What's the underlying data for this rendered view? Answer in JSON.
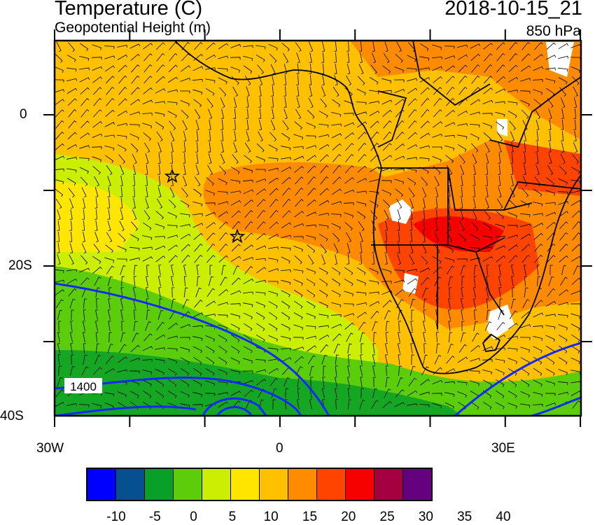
{
  "header": {
    "title": "Temperature (C)",
    "subtitle": "Geopotential Height (m)",
    "valid_time": "2018-10-15_21",
    "level": "850 hPa"
  },
  "axes": {
    "lat_labels": [
      "0",
      "20S",
      "40S"
    ],
    "lon_labels": [
      "30W",
      "0",
      "30E"
    ]
  },
  "contour_label": "1400",
  "colorbar": {
    "labels": [
      "-10",
      "-5",
      "0",
      "5",
      "10",
      "15",
      "20",
      "25",
      "30",
      "35",
      "40"
    ],
    "colors": [
      "#0000ff",
      "#06508f",
      "#08a028",
      "#5ccd0a",
      "#ccee00",
      "#ffe600",
      "#ffc000",
      "#ff8c00",
      "#ff4400",
      "#f70000",
      "#a50040",
      "#64007d"
    ]
  }
}
